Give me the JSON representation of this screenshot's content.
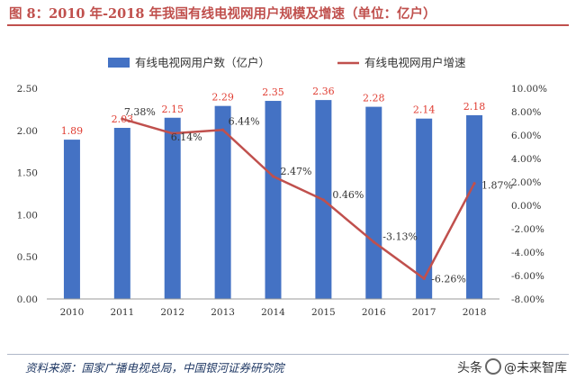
{
  "title": "图 8：2010 年-2018 年我国有线电视网用户规模及增速（单位：亿户）",
  "source": "资料来源：国家广播电视总局，中国银河证券研究院",
  "watermark": {
    "prefix": "头条",
    "text": "@未来智库"
  },
  "colors": {
    "bar": "#4472c4",
    "line": "#c0504d",
    "bar_label": "#e03c31",
    "line_label": "#333333",
    "title": "#c0504d"
  },
  "chart_data": {
    "type": "bar+line",
    "categories": [
      "2010",
      "2011",
      "2012",
      "2013",
      "2014",
      "2015",
      "2016",
      "2017",
      "2018"
    ],
    "series": [
      {
        "name": "有线电视网用户数（亿户）",
        "type": "bar",
        "axis": "left",
        "values": [
          1.89,
          2.03,
          2.15,
          2.29,
          2.35,
          2.36,
          2.28,
          2.14,
          2.18
        ],
        "labels": [
          "1.89",
          "2.03",
          "2.15",
          "2.29",
          "2.35",
          "2.36",
          "2.28",
          "2.14",
          "2.18"
        ]
      },
      {
        "name": "有线电视网用户增速",
        "type": "line",
        "axis": "right",
        "x": [
          "2011",
          "2012",
          "2013",
          "2014",
          "2015",
          "2016",
          "2017",
          "2018"
        ],
        "values": [
          7.38,
          6.14,
          6.44,
          2.47,
          0.46,
          -3.13,
          -6.26,
          1.87
        ],
        "labels": [
          "7.38%",
          "6.14%",
          "6.44%",
          "2.47%",
          "0.46%",
          "-3.13%",
          "-6.26%",
          "1.87%"
        ]
      }
    ],
    "y_left": {
      "ylim": [
        0,
        2.5
      ],
      "ticks": [
        "0.00",
        "0.50",
        "1.00",
        "1.50",
        "2.00",
        "2.50"
      ]
    },
    "y_right": {
      "ylim": [
        -8,
        10
      ],
      "ticks": [
        "-8.00%",
        "-6.00%",
        "-4.00%",
        "-2.00%",
        "0.00%",
        "2.00%",
        "4.00%",
        "6.00%",
        "8.00%",
        "10.00%"
      ]
    },
    "legend_position": "top",
    "grid": false
  }
}
